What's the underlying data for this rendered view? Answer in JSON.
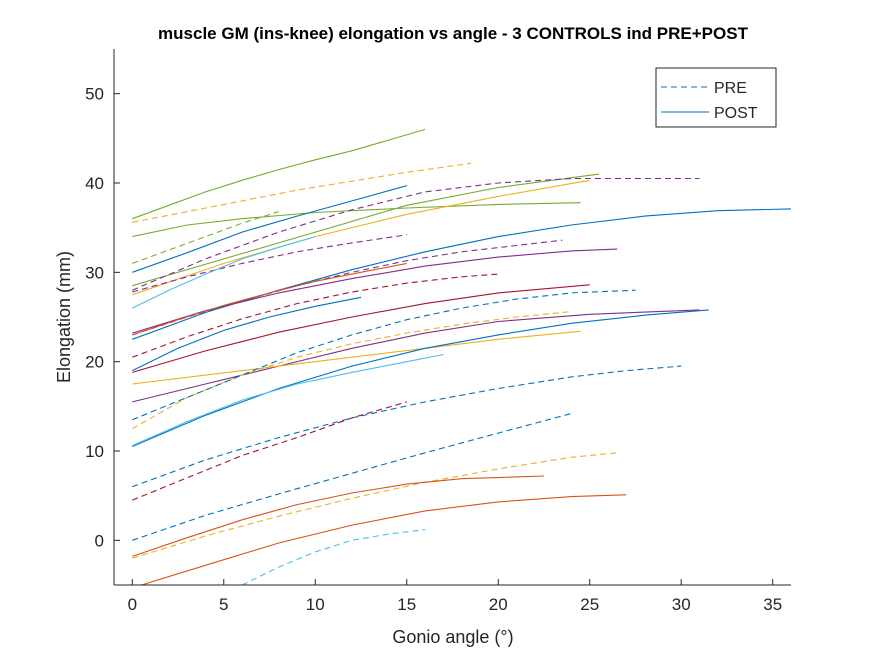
{
  "chart_data": {
    "type": "line",
    "title": "muscle GM (ins-knee) elongation vs angle - 3 CONTROLS ind PRE+POST",
    "xlabel": "Gonio angle (°)",
    "ylabel": "Elongation (mm)",
    "xlim": [
      -1,
      36
    ],
    "ylim": [
      -5,
      55
    ],
    "xticks": [
      0,
      5,
      10,
      15,
      20,
      25,
      30,
      35
    ],
    "yticks": [
      0,
      10,
      20,
      30,
      40,
      50
    ],
    "grid": false,
    "legend": {
      "position": "top-right",
      "entries": [
        {
          "label": "PRE",
          "style": "dashed",
          "color": "#0072BD"
        },
        {
          "label": "POST",
          "style": "solid",
          "color": "#0072BD"
        }
      ]
    },
    "series": [
      {
        "color": "#77AC30",
        "style": "solid",
        "x": [
          0,
          2,
          4,
          6,
          8,
          10,
          12,
          14,
          16
        ],
        "y": [
          36.0,
          37.5,
          39.0,
          40.3,
          41.5,
          42.6,
          43.6,
          44.8,
          46.0
        ]
      },
      {
        "color": "#EDB120",
        "style": "dashed",
        "x": [
          0,
          3,
          6,
          9,
          12,
          15,
          18.5
        ],
        "y": [
          35.6,
          36.8,
          38.0,
          39.2,
          40.2,
          41.2,
          42.2
        ]
      },
      {
        "color": "#77AC30",
        "style": "dashed",
        "x": [
          0,
          2,
          4,
          6,
          8
        ],
        "y": [
          31.0,
          32.5,
          34.0,
          35.5,
          36.8
        ]
      },
      {
        "color": "#77AC30",
        "style": "solid",
        "x": [
          0,
          3,
          6,
          10,
          15,
          20,
          24.5
        ],
        "y": [
          34.0,
          35.3,
          36.0,
          36.7,
          37.2,
          37.6,
          37.8
        ]
      },
      {
        "color": "#0072BD",
        "style": "solid",
        "x": [
          0,
          3,
          6,
          9,
          12,
          15
        ],
        "y": [
          30.0,
          32.2,
          34.5,
          36.3,
          38.0,
          39.7
        ]
      },
      {
        "color": "#77AC30",
        "style": "solid",
        "x": [
          0,
          5,
          10,
          15,
          20,
          25.5
        ],
        "y": [
          28.5,
          31.5,
          34.5,
          37.5,
          39.5,
          41.0
        ]
      },
      {
        "color": "#EDB120",
        "style": "solid",
        "x": [
          0,
          5,
          10,
          15,
          20,
          25
        ],
        "y": [
          27.5,
          31.0,
          34.0,
          36.5,
          38.5,
          40.3
        ]
      },
      {
        "color": "#7E2F8E",
        "style": "dashed",
        "x": [
          0,
          4,
          8,
          12,
          16,
          20,
          24,
          31
        ],
        "y": [
          28.0,
          31.5,
          34.5,
          37.0,
          39.0,
          40.0,
          40.5,
          40.5
        ]
      },
      {
        "color": "#7E2F8E",
        "style": "dashed",
        "x": [
          0,
          3,
          6,
          9,
          12,
          15
        ],
        "y": [
          27.8,
          29.5,
          31.0,
          32.3,
          33.3,
          34.2
        ]
      },
      {
        "color": "#4DBEEE",
        "style": "solid",
        "x": [
          0,
          2,
          4,
          6,
          8,
          10
        ],
        "y": [
          26.0,
          28.0,
          29.8,
          31.5,
          32.8,
          34.0
        ]
      },
      {
        "color": "#7E2F8E",
        "style": "dashed",
        "x": [
          0,
          3,
          6,
          9,
          12,
          15,
          18,
          21,
          23.5
        ],
        "y": [
          23.0,
          25.0,
          26.8,
          28.5,
          30.0,
          31.3,
          32.3,
          33.0,
          33.6
        ]
      },
      {
        "color": "#0072BD",
        "style": "solid",
        "x": [
          0,
          4,
          8,
          12,
          16,
          20,
          24,
          28,
          32,
          36
        ],
        "y": [
          22.5,
          25.5,
          28.0,
          30.3,
          32.3,
          34.0,
          35.3,
          36.3,
          36.9,
          37.1
        ]
      },
      {
        "color": "#7E2F8E",
        "style": "solid",
        "x": [
          0,
          4,
          8,
          12,
          16,
          20,
          24,
          26.5
        ],
        "y": [
          23.2,
          25.7,
          27.7,
          29.3,
          30.7,
          31.7,
          32.4,
          32.6
        ]
      },
      {
        "color": "#D95319",
        "style": "solid",
        "x": [
          0,
          2.5,
          5,
          7.5,
          10,
          12.5,
          15
        ],
        "y": [
          23.0,
          24.7,
          26.3,
          27.7,
          29.0,
          30.0,
          31.0
        ]
      },
      {
        "color": "#A2142F",
        "style": "dashed",
        "x": [
          0,
          3,
          6,
          9,
          12,
          15,
          18,
          20
        ],
        "y": [
          20.5,
          22.8,
          24.8,
          26.5,
          27.8,
          28.8,
          29.5,
          29.8
        ]
      },
      {
        "color": "#0072BD",
        "style": "solid",
        "x": [
          0,
          2.5,
          5,
          7.5,
          10,
          12.5
        ],
        "y": [
          19.0,
          21.5,
          23.5,
          25.0,
          26.2,
          27.2
        ]
      },
      {
        "color": "#A2142F",
        "style": "solid",
        "x": [
          0,
          4,
          8,
          12,
          16,
          20,
          25
        ],
        "y": [
          18.8,
          21.2,
          23.3,
          25.0,
          26.5,
          27.7,
          28.6
        ]
      },
      {
        "color": "#7E2F8E",
        "style": "solid",
        "x": [
          0,
          4,
          8,
          12,
          16,
          20,
          25,
          31
        ],
        "y": [
          15.5,
          17.5,
          19.5,
          21.5,
          23.2,
          24.5,
          25.3,
          25.8
        ]
      },
      {
        "color": "#EDB120",
        "style": "solid",
        "x": [
          0,
          4,
          8,
          12,
          16,
          20,
          24.5
        ],
        "y": [
          17.5,
          18.5,
          19.5,
          20.5,
          21.5,
          22.5,
          23.4
        ]
      },
      {
        "color": "#EDB120",
        "style": "dashed",
        "x": [
          0,
          3,
          6,
          9,
          12,
          15,
          18,
          21,
          24
        ],
        "y": [
          12.5,
          16.0,
          18.5,
          20.5,
          22.0,
          23.2,
          24.2,
          25.0,
          25.6
        ]
      },
      {
        "color": "#0072BD",
        "style": "solid",
        "x": [
          0,
          4,
          8,
          12,
          16,
          20,
          24,
          28,
          31.5
        ],
        "y": [
          10.5,
          14.0,
          17.0,
          19.5,
          21.5,
          23.0,
          24.3,
          25.2,
          25.8
        ]
      },
      {
        "color": "#4DBEEE",
        "style": "solid",
        "x": [
          0,
          3,
          6,
          9,
          12,
          15,
          17
        ],
        "y": [
          10.6,
          13.3,
          15.7,
          17.5,
          18.8,
          20.0,
          20.8
        ]
      },
      {
        "color": "#0072BD",
        "style": "dashed",
        "x": [
          0,
          3,
          6,
          9,
          12,
          15,
          18,
          21,
          24,
          27.5
        ],
        "y": [
          13.5,
          16.0,
          18.5,
          21.0,
          23.0,
          24.7,
          26.0,
          27.0,
          27.7,
          28.0
        ]
      },
      {
        "color": "#0072BD",
        "style": "dashed",
        "x": [
          0,
          4,
          8,
          12,
          16,
          20,
          24,
          27,
          30
        ],
        "y": [
          6.0,
          9.0,
          11.5,
          13.7,
          15.5,
          17.0,
          18.3,
          19.0,
          19.5
        ]
      },
      {
        "color": "#A2142F",
        "style": "dashed",
        "x": [
          0,
          3,
          6,
          9,
          12,
          15
        ],
        "y": [
          4.5,
          7.0,
          9.5,
          11.5,
          13.7,
          15.5
        ]
      },
      {
        "color": "#0072BD",
        "style": "dashed",
        "x": [
          0,
          4,
          8,
          12,
          16,
          20,
          24
        ],
        "y": [
          0.0,
          2.8,
          5.2,
          7.5,
          9.8,
          12.0,
          14.2
        ]
      },
      {
        "color": "#EDB120",
        "style": "dashed",
        "x": [
          0,
          4,
          8,
          12,
          16,
          20,
          24,
          26.5
        ],
        "y": [
          -2.0,
          0.5,
          2.7,
          4.7,
          6.5,
          8.0,
          9.3,
          9.8
        ]
      },
      {
        "color": "#D95319",
        "style": "solid",
        "x": [
          0,
          3,
          6,
          9,
          12,
          15,
          18,
          22.5
        ],
        "y": [
          -1.8,
          0.3,
          2.3,
          4.0,
          5.3,
          6.3,
          6.9,
          7.2
        ]
      },
      {
        "color": "#D95319",
        "style": "solid",
        "x": [
          0.5,
          4,
          8,
          12,
          16,
          20,
          24,
          27
        ],
        "y": [
          -5.0,
          -2.8,
          -0.3,
          1.7,
          3.3,
          4.3,
          4.9,
          5.1
        ]
      },
      {
        "color": "#4DBEEE",
        "style": "dashed",
        "x": [
          6,
          8,
          10,
          12,
          14,
          16
        ],
        "y": [
          -5.0,
          -3.0,
          -1.3,
          0.0,
          0.7,
          1.2
        ]
      }
    ]
  }
}
